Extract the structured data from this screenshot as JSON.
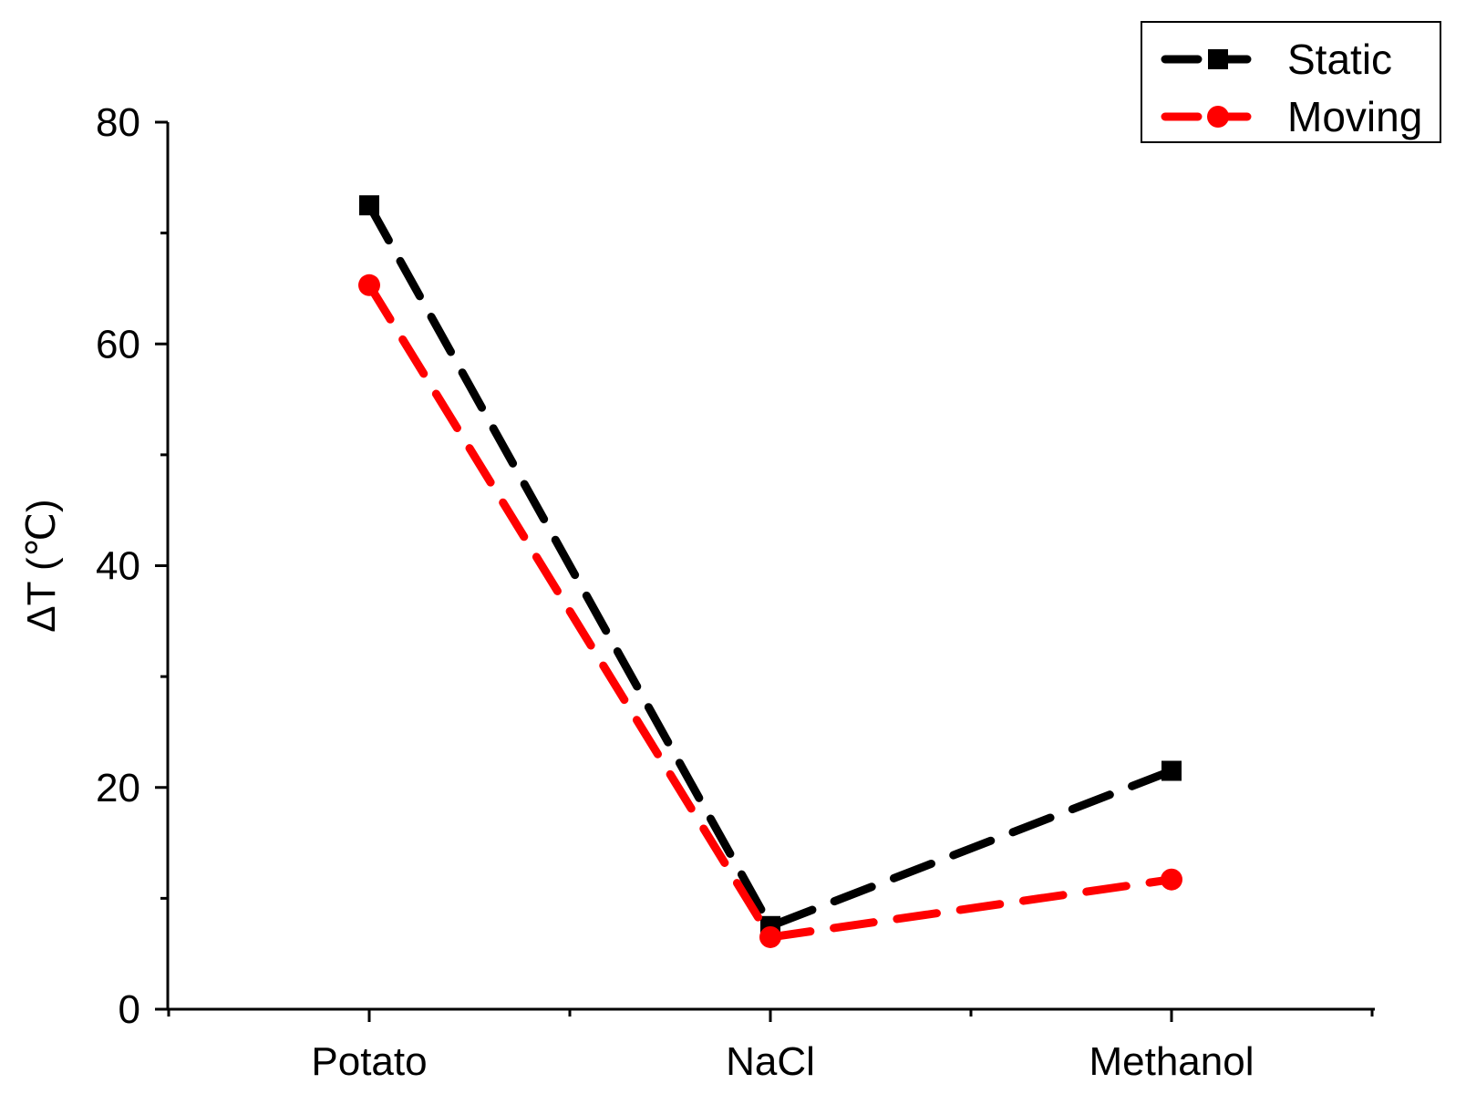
{
  "chart_data": {
    "type": "line",
    "categories": [
      "Potato",
      "NaCl",
      "Methanol"
    ],
    "ylabel": "ΔT (℃)",
    "xlabel": "",
    "ylim": [
      0,
      80
    ],
    "yticks": [
      0,
      20,
      40,
      60,
      80
    ],
    "grid": false,
    "legend_position": "top-right",
    "series": [
      {
        "name": "Static",
        "values": [
          72.5,
          7.5,
          21.5
        ],
        "color": "#000000",
        "marker": "square",
        "line_style": "dashed"
      },
      {
        "name": "Moving",
        "values": [
          65.3,
          6.5,
          11.7
        ],
        "color": "#ff0000",
        "marker": "circle",
        "line_style": "dashed"
      }
    ]
  }
}
